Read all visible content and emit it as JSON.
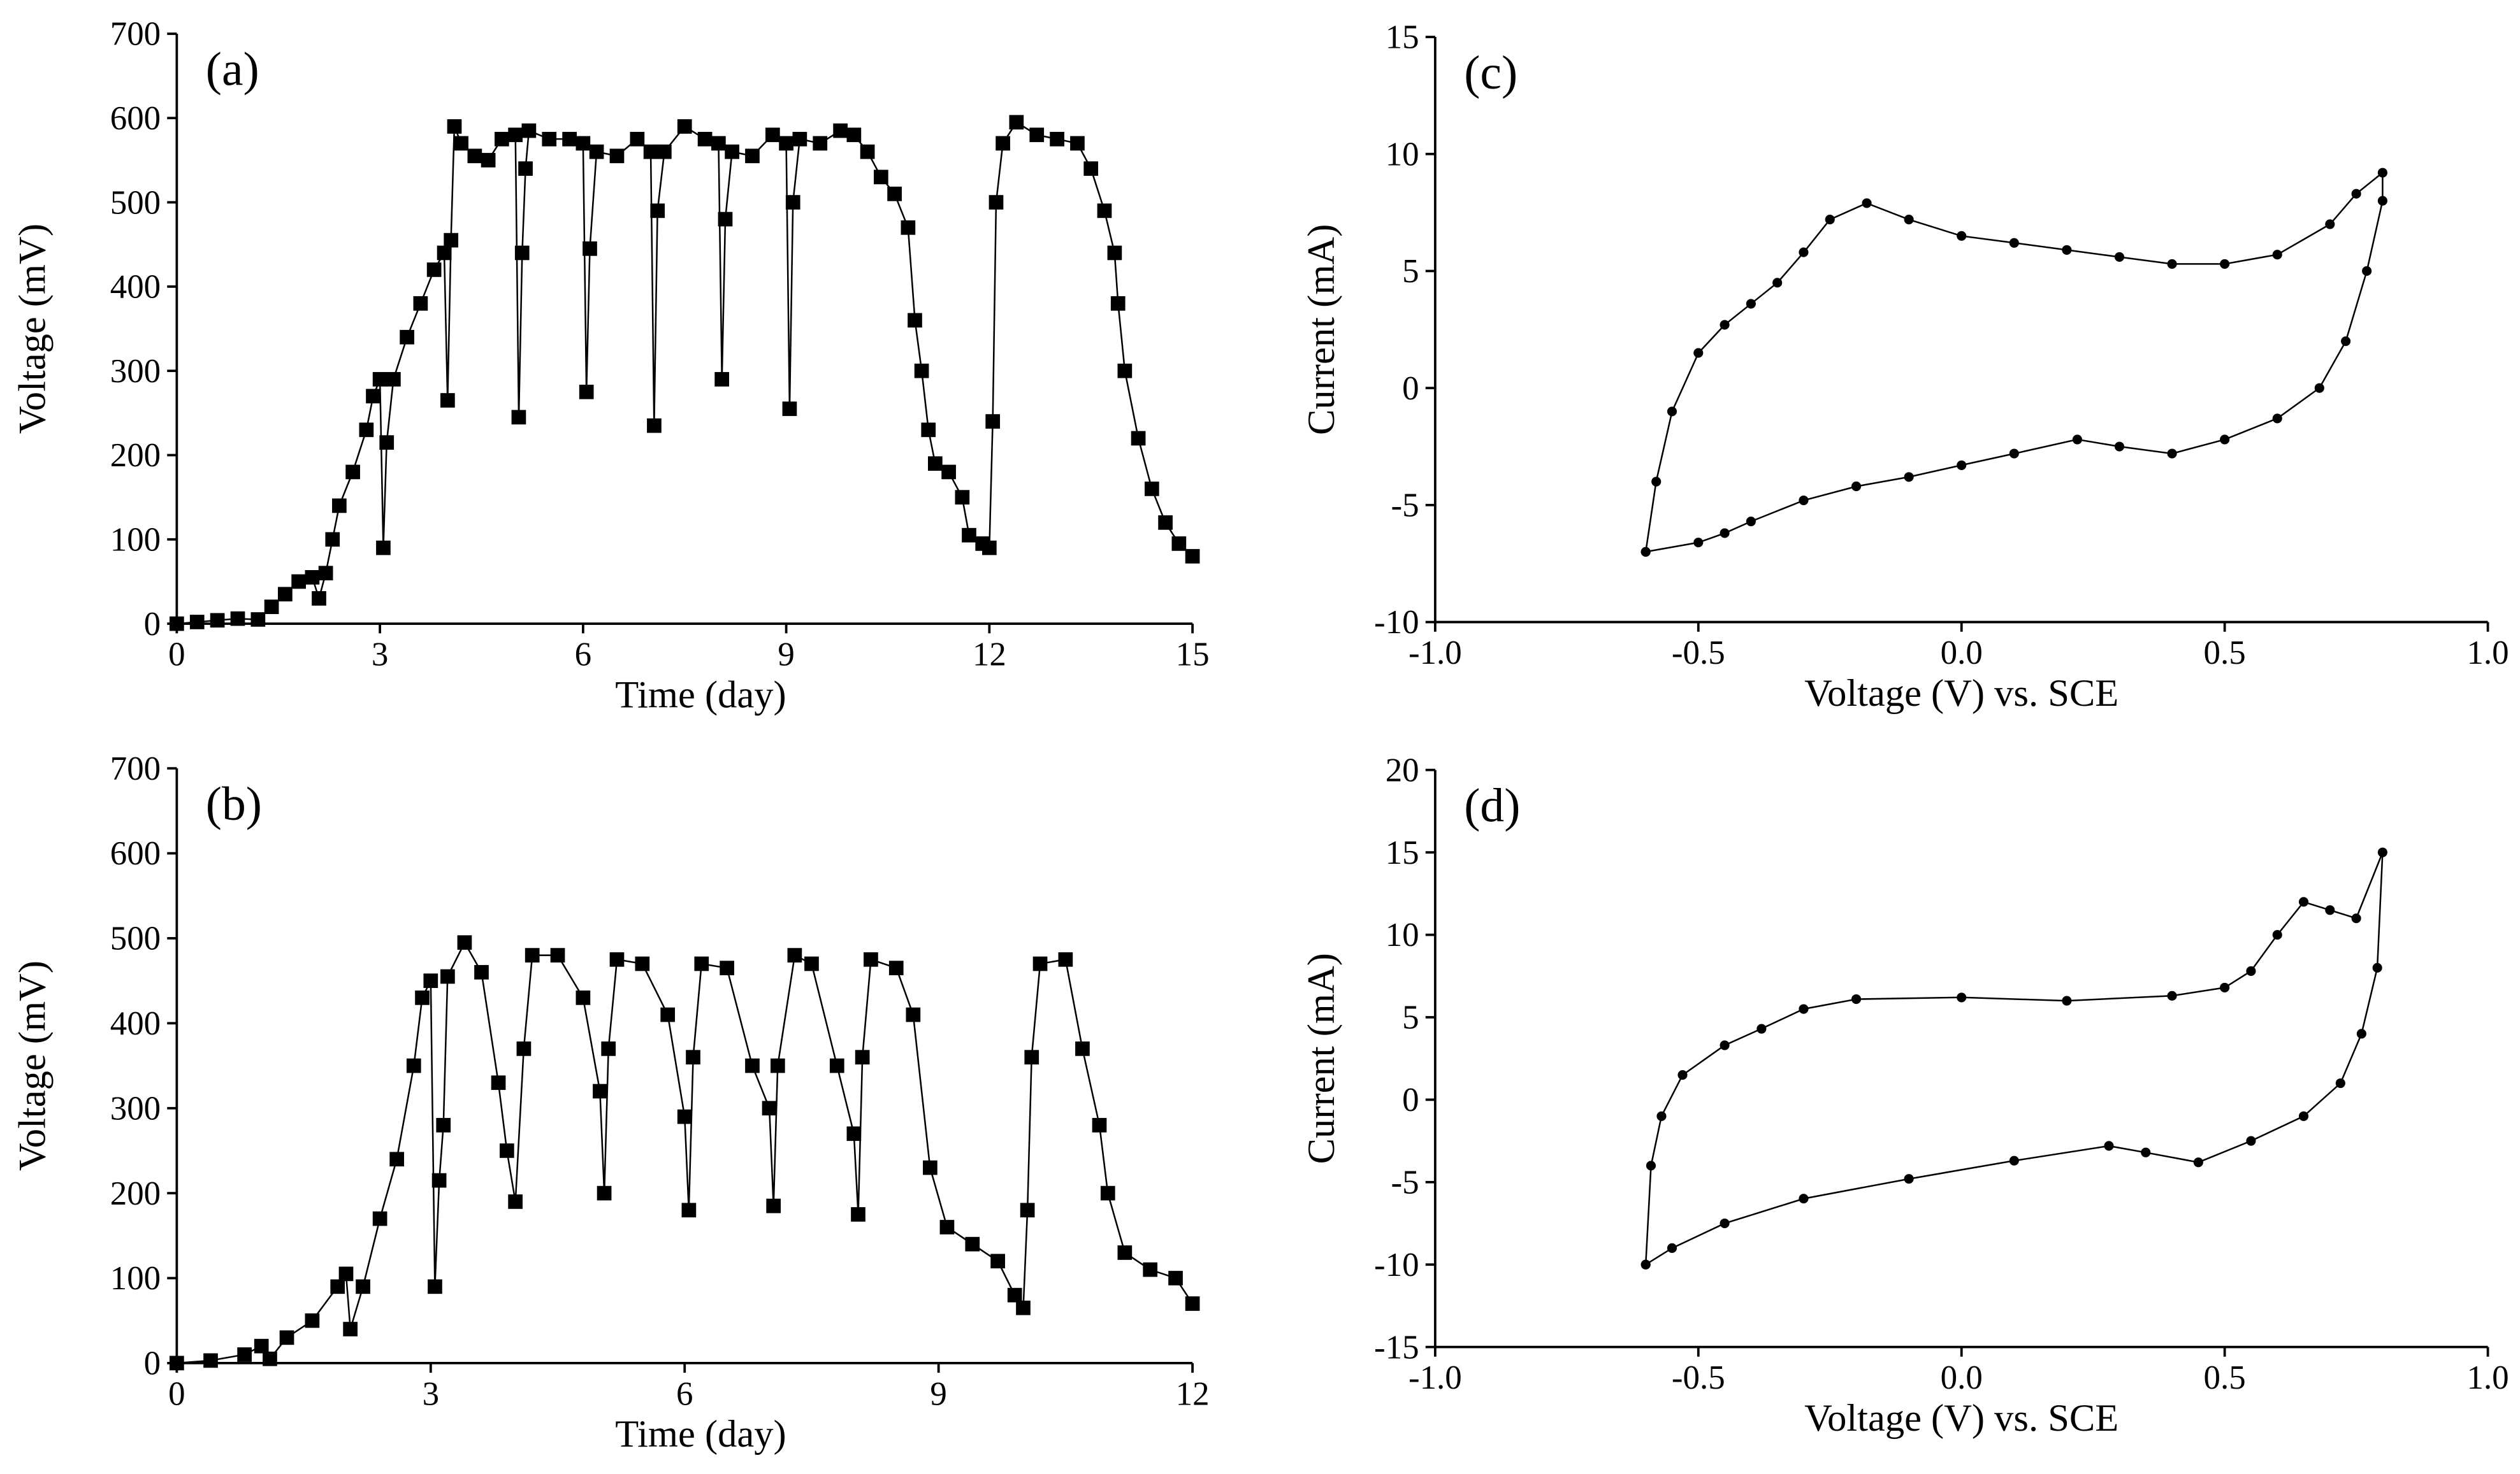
{
  "chart_data": [
    {
      "type": "line",
      "annotation": "(a)",
      "x_label": "Time (day)",
      "y_label": "Voltage (mV)",
      "color": "#000000",
      "marker": "square",
      "xlim": [
        0,
        15
      ],
      "xticks": [
        0,
        3,
        6,
        9,
        12,
        15
      ],
      "ylim": [
        0,
        700
      ],
      "yticks": [
        0,
        100,
        200,
        300,
        400,
        500,
        600,
        700
      ],
      "x": [
        0,
        0.3,
        0.6,
        0.9,
        1.2,
        1.4,
        1.6,
        1.8,
        2.0,
        2.1,
        2.2,
        2.3,
        2.4,
        2.6,
        2.8,
        2.9,
        3.0,
        3.05,
        3.1,
        3.2,
        3.4,
        3.6,
        3.8,
        3.95,
        4.0,
        4.05,
        4.1,
        4.2,
        4.4,
        4.6,
        4.8,
        5.0,
        5.05,
        5.1,
        5.15,
        5.2,
        5.5,
        5.8,
        6.0,
        6.05,
        6.1,
        6.2,
        6.5,
        6.8,
        7.0,
        7.05,
        7.1,
        7.2,
        7.5,
        7.8,
        8.0,
        8.05,
        8.1,
        8.2,
        8.5,
        8.8,
        9.0,
        9.05,
        9.1,
        9.2,
        9.5,
        9.8,
        10.0,
        10.2,
        10.4,
        10.6,
        10.8,
        10.9,
        11.0,
        11.1,
        11.2,
        11.4,
        11.6,
        11.7,
        11.9,
        12.0,
        12.05,
        12.1,
        12.2,
        12.4,
        12.7,
        13.0,
        13.3,
        13.5,
        13.7,
        13.85,
        13.9,
        14.0,
        14.2,
        14.4,
        14.6,
        14.8,
        15.0
      ],
      "values": [
        0,
        2,
        4,
        6,
        5,
        20,
        35,
        50,
        55,
        30,
        60,
        100,
        140,
        180,
        230,
        270,
        290,
        90,
        215,
        290,
        340,
        380,
        420,
        440,
        265,
        455,
        590,
        570,
        555,
        550,
        575,
        580,
        245,
        440,
        540,
        585,
        575,
        575,
        570,
        275,
        445,
        560,
        555,
        575,
        560,
        235,
        490,
        560,
        590,
        575,
        570,
        290,
        480,
        560,
        555,
        580,
        570,
        255,
        500,
        575,
        570,
        585,
        580,
        560,
        530,
        510,
        470,
        360,
        300,
        230,
        190,
        180,
        150,
        105,
        95,
        90,
        240,
        500,
        570,
        595,
        580,
        575,
        570,
        540,
        490,
        440,
        380,
        300,
        220,
        160,
        120,
        95,
        80
      ]
    },
    {
      "type": "line",
      "annotation": "(b)",
      "x_label": "Time (day)",
      "y_label": "Voltage (mV)",
      "color": "#000000",
      "marker": "square",
      "xlim": [
        0,
        12
      ],
      "xticks": [
        0,
        3,
        6,
        9,
        12
      ],
      "ylim": [
        0,
        700
      ],
      "yticks": [
        0,
        100,
        200,
        300,
        400,
        500,
        600,
        700
      ],
      "x": [
        0,
        0.4,
        0.8,
        1.0,
        1.1,
        1.3,
        1.6,
        1.9,
        2.0,
        2.05,
        2.2,
        2.4,
        2.6,
        2.8,
        2.9,
        3.0,
        3.05,
        3.1,
        3.15,
        3.2,
        3.4,
        3.6,
        3.8,
        3.9,
        4.0,
        4.1,
        4.2,
        4.5,
        4.8,
        5.0,
        5.05,
        5.1,
        5.2,
        5.5,
        5.8,
        6.0,
        6.05,
        6.1,
        6.2,
        6.5,
        6.8,
        7.0,
        7.05,
        7.1,
        7.3,
        7.5,
        7.8,
        8.0,
        8.05,
        8.1,
        8.2,
        8.5,
        8.7,
        8.9,
        9.1,
        9.4,
        9.7,
        9.9,
        10.0,
        10.05,
        10.1,
        10.2,
        10.5,
        10.7,
        10.9,
        11.0,
        11.2,
        11.5,
        11.8,
        12.0
      ],
      "values": [
        0,
        3,
        10,
        20,
        5,
        30,
        50,
        90,
        105,
        40,
        90,
        170,
        240,
        350,
        430,
        450,
        90,
        215,
        280,
        455,
        495,
        460,
        330,
        250,
        190,
        370,
        480,
        480,
        430,
        320,
        200,
        370,
        475,
        470,
        410,
        290,
        180,
        360,
        470,
        465,
        350,
        300,
        185,
        350,
        480,
        470,
        350,
        270,
        175,
        360,
        475,
        465,
        410,
        230,
        160,
        140,
        120,
        80,
        65,
        180,
        360,
        470,
        475,
        370,
        280,
        200,
        130,
        110,
        100,
        70
      ]
    },
    {
      "type": "line",
      "annotation": "(c)",
      "x_label": "Voltage (V) vs. SCE",
      "y_label": "Current (mA)",
      "color": "#000000",
      "marker": "circle",
      "xlim": [
        -1,
        1
      ],
      "xticks": [
        {
          "value": -1,
          "label": "-1.0"
        },
        -0.5,
        {
          "value": 0,
          "label": "0.0"
        },
        0.5,
        {
          "value": 1,
          "label": "1.0"
        }
      ],
      "ylim": [
        -10,
        15
      ],
      "yticks": [
        -10,
        -5,
        0,
        5,
        10,
        15
      ],
      "x": [
        -0.6,
        -0.58,
        -0.55,
        -0.5,
        -0.45,
        -0.4,
        -0.35,
        -0.3,
        -0.25,
        -0.18,
        -0.1,
        0.0,
        0.1,
        0.2,
        0.3,
        0.4,
        0.5,
        0.6,
        0.7,
        0.75,
        0.8,
        0.8,
        0.77,
        0.73,
        0.68,
        0.6,
        0.5,
        0.4,
        0.3,
        0.22,
        0.1,
        0.0,
        -0.1,
        -0.2,
        -0.3,
        -0.4,
        -0.45,
        -0.5,
        -0.6
      ],
      "values": [
        -7,
        -4,
        -1,
        1.5,
        2.7,
        3.6,
        4.5,
        5.8,
        7.2,
        7.9,
        7.2,
        6.5,
        6.2,
        5.9,
        5.6,
        5.3,
        5.3,
        5.7,
        7,
        8.3,
        9.2,
        8,
        5,
        2,
        0,
        -1.3,
        -2.2,
        -2.8,
        -2.5,
        -2.2,
        -2.8,
        -3.3,
        -3.8,
        -4.2,
        -4.8,
        -5.7,
        -6.2,
        -6.6,
        -7
      ]
    },
    {
      "type": "line",
      "annotation": "(d)",
      "x_label": "Voltage (V) vs. SCE",
      "y_label": "Current (mA)",
      "color": "#000000",
      "marker": "circle",
      "xlim": [
        -1,
        1
      ],
      "xticks": [
        {
          "value": -1,
          "label": "-1.0"
        },
        -0.5,
        {
          "value": 0,
          "label": "0.0"
        },
        0.5,
        {
          "value": 1,
          "label": "1.0"
        }
      ],
      "ylim": [
        -15,
        20
      ],
      "yticks": [
        -15,
        -10,
        -5,
        0,
        5,
        10,
        15,
        20
      ],
      "x": [
        -0.6,
        -0.59,
        -0.57,
        -0.53,
        -0.45,
        -0.38,
        -0.3,
        -0.2,
        0.0,
        0.2,
        0.4,
        0.5,
        0.55,
        0.6,
        0.65,
        0.7,
        0.75,
        0.8,
        0.79,
        0.76,
        0.72,
        0.65,
        0.55,
        0.45,
        0.35,
        0.28,
        0.1,
        -0.1,
        -0.3,
        -0.45,
        -0.55,
        -0.6
      ],
      "values": [
        -10,
        -4,
        -1,
        1.5,
        3.3,
        4.3,
        5.5,
        6.1,
        6.2,
        6,
        6.3,
        6.8,
        7.8,
        10,
        12,
        11.5,
        11,
        15,
        8,
        4,
        1,
        -1,
        -2.5,
        -3.8,
        -3.2,
        -2.8,
        -3.7,
        -4.8,
        -6,
        -7.5,
        -9,
        -10
      ]
    }
  ]
}
